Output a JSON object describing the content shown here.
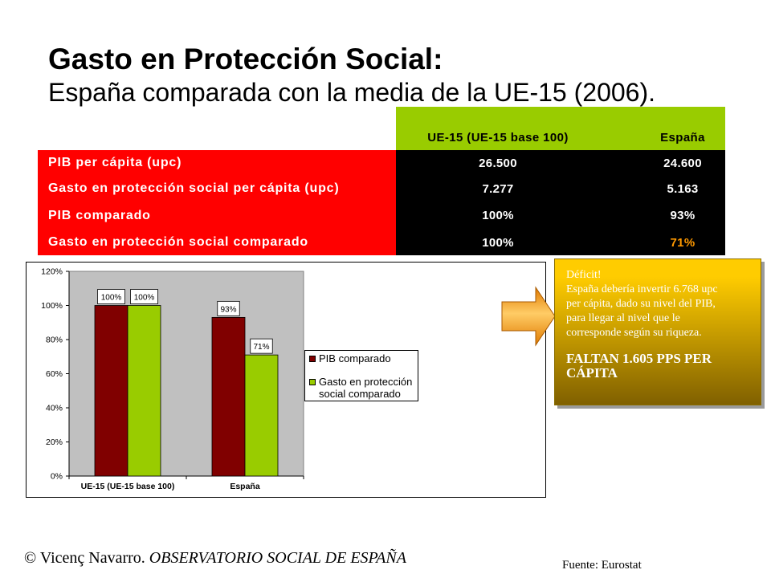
{
  "slide": {
    "title": "Gasto en Protección Social:",
    "subtitle": "España comparada con la media de la UE-15 (2006)."
  },
  "table": {
    "header": {
      "ue15": "UE-15 (UE-15 base 100)",
      "espana": "España"
    },
    "rows": [
      {
        "label": "PIB per cápita (upc)",
        "ue15": "26.500",
        "espana": "24.600"
      },
      {
        "label": "Gasto en protección social per cápita (upc)",
        "ue15": "7.277",
        "espana": "5.163"
      },
      {
        "label": "PIB comparado",
        "ue15": "100%",
        "espana": "93%"
      },
      {
        "label": "Gasto en protección social comparado",
        "ue15": "100%",
        "espana": "71%",
        "espana_color": "#ff9900"
      }
    ],
    "colors": {
      "header": "#99cc00",
      "label_cells": "#ff0000",
      "value_cells": "#000000",
      "text": "#ffffff"
    }
  },
  "chart_data": {
    "type": "bar",
    "categories": [
      "UE-15 (UE-15 base 100)",
      "España"
    ],
    "series": [
      {
        "name": "PIB comparado",
        "values": [
          100,
          93
        ],
        "labels": [
          "100%",
          "93%"
        ],
        "color": "#800000"
      },
      {
        "name": "Gasto en protección social comparado",
        "values": [
          100,
          71
        ],
        "labels": [
          "100%",
          "71%"
        ],
        "color": "#99cc00"
      }
    ],
    "yticks": [
      0,
      20,
      40,
      60,
      80,
      100,
      120
    ],
    "ytick_labels": [
      "0%",
      "20%",
      "40%",
      "60%",
      "80%",
      "100%",
      "120%"
    ],
    "ylim": [
      0,
      120
    ],
    "legend": "right",
    "grid": false,
    "plot_background": "#c0c0c0"
  },
  "callout": {
    "heading": "Déficit!",
    "body_lines": [
      "España debería invertir 6.768 upc",
      "per cápita, dado su nivel del PIB,",
      "para llegar al nivel que le",
      "corresponde según su riqueza."
    ],
    "emphasis_lines": [
      "FALTAN 1.605 PPS PER",
      "CÁPITA"
    ],
    "colors": {
      "top": "#ffcc00",
      "bottom": "#806000",
      "text": "#ffffff"
    }
  },
  "arrow": {
    "icon": "right-arrow-icon",
    "color": "#ff9900"
  },
  "footer": {
    "author": "© Vicenç Navarro.",
    "organization": "OBSERVATORIO SOCIAL DE ESPAÑA",
    "source": "Fuente: Eurostat"
  }
}
